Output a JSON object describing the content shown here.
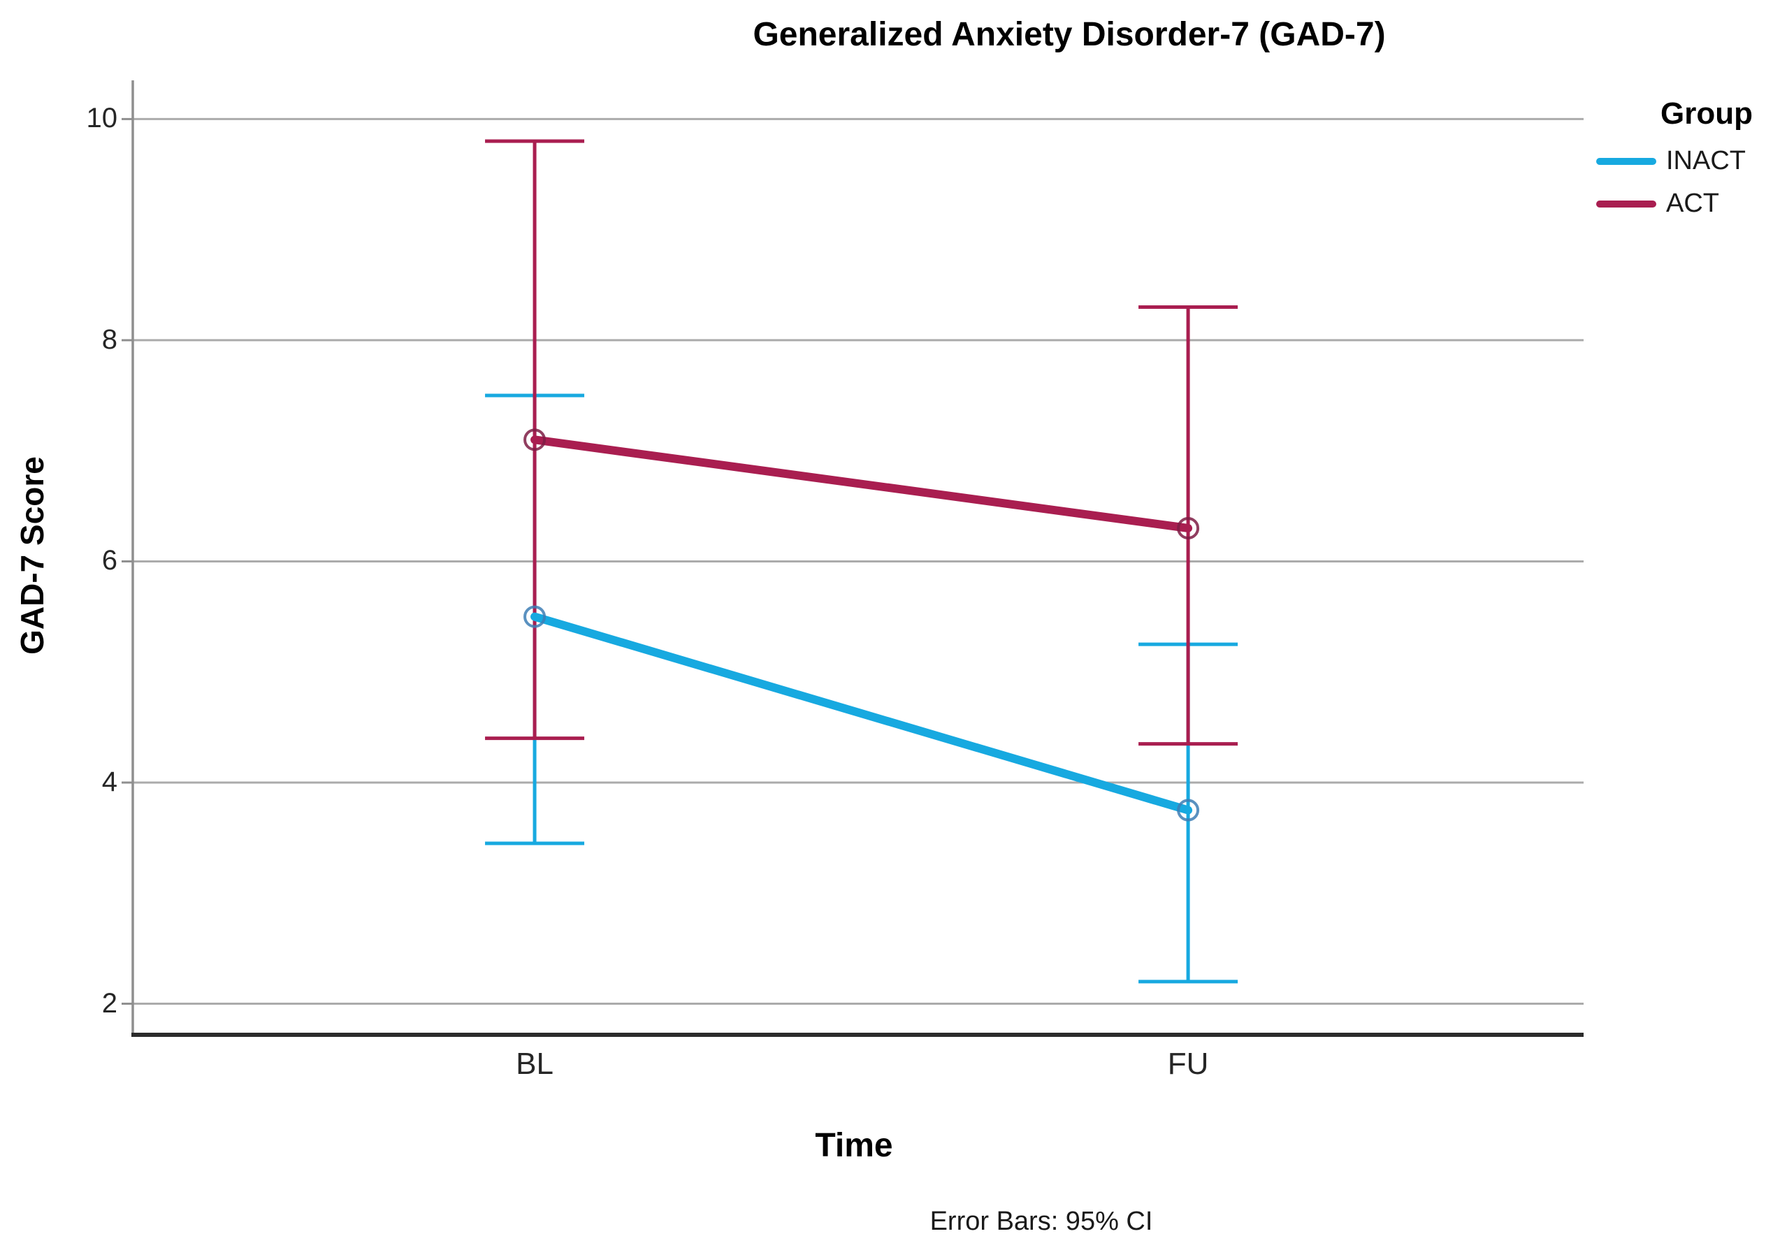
{
  "title": "Generalized Anxiety Disorder-7 (GAD-7)",
  "legend": {
    "title": "Group",
    "entries": [
      {
        "label": "INACT",
        "color": "#17A9E0"
      },
      {
        "label": "ACT",
        "color": "#A91E50"
      }
    ]
  },
  "chart_data": {
    "type": "line",
    "categories": [
      "BL",
      "FU"
    ],
    "series": [
      {
        "name": "INACT",
        "color": "#17A9E0",
        "marker_color": "#3D7EB5",
        "values": [
          5.5,
          3.75
        ],
        "ci_low": [
          3.45,
          2.2
        ],
        "ci_high": [
          7.5,
          5.25
        ]
      },
      {
        "name": "ACT",
        "color": "#A91E50",
        "marker_color": "#7E1C44",
        "values": [
          7.1,
          6.3
        ],
        "ci_low": [
          4.4,
          4.35
        ],
        "ci_high": [
          9.8,
          8.3
        ]
      }
    ],
    "title": "Generalized Anxiety Disorder-7 (GAD-7)",
    "xlabel": "Time",
    "ylabel": "GAD-7 Score",
    "yticks": [
      10,
      8,
      6,
      4,
      2
    ],
    "ylim": [
      1.7,
      10.35
    ],
    "grid": true,
    "legend_position": "top-right",
    "caption": "Error Bars: 95% CI",
    "error_bars": "95% CI",
    "colors": {
      "gridline": "#ABABAB",
      "y_axis": "#8F8F8F",
      "x_axis": "#2B2B2B",
      "tick_text": "#262626"
    }
  }
}
